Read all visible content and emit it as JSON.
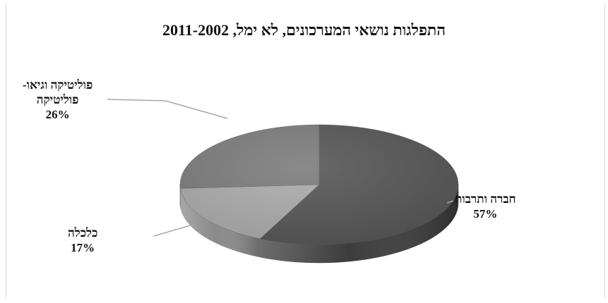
{
  "colors": {
    "society_top": "#575757",
    "society_side": "#3c3c3c",
    "economy_top": "#acacac",
    "economy_side": "#8a8a8a",
    "politics_top": "#7d7d7d",
    "politics_side": "#616161",
    "leader": "#a6a6a6"
  },
  "chart_data": {
    "type": "pie",
    "title": "התפלגות נושאי המערכונים, לא ימל, 2011-2002",
    "slices": [
      {
        "label": "חברה ותרבות",
        "value": 57,
        "value_label": "57%"
      },
      {
        "label": "כלכלה",
        "value": 17,
        "value_label": "17%"
      },
      {
        "label_lines": [
          "פוליטיקה וגיאו-",
          "פוליטיקה"
        ],
        "value": 26,
        "value_label": "26%"
      }
    ],
    "legend": "none"
  }
}
